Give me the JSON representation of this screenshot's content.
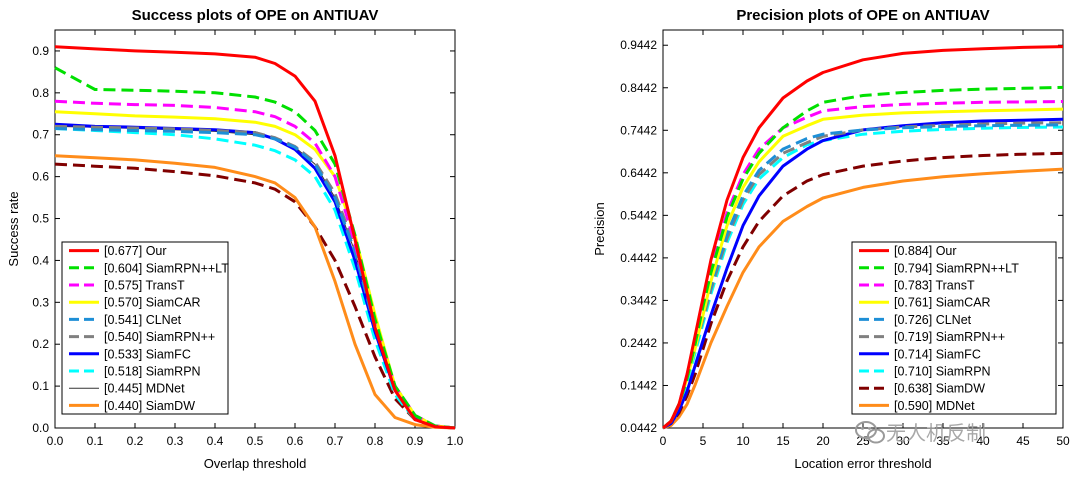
{
  "watermark": {
    "text": "无人机反制",
    "icon": "wechat-icon"
  },
  "chart_data": [
    {
      "type": "line",
      "title": "Success plots of OPE on ANTIUAV",
      "xlabel": "Overlap threshold",
      "ylabel": "Success rate",
      "xlim": [
        0,
        1
      ],
      "ylim": [
        0,
        0.95
      ],
      "x_ticks": [
        "0.0",
        "0.1",
        "0.2",
        "0.3",
        "0.4",
        "0.5",
        "0.6",
        "0.7",
        "0.8",
        "0.9",
        "1.0"
      ],
      "y_ticks": [
        "0.0",
        "0.1",
        "0.2",
        "0.3",
        "0.4",
        "0.5",
        "0.6",
        "0.7",
        "0.8",
        "0.9"
      ],
      "legend_position": "lower-left",
      "x": [
        0,
        0.1,
        0.2,
        0.3,
        0.4,
        0.5,
        0.55,
        0.6,
        0.65,
        0.7,
        0.75,
        0.8,
        0.85,
        0.9,
        0.95,
        1.0
      ],
      "series": [
        {
          "name": "[0.677] Our",
          "color": "#ff0000",
          "dash": "solid",
          "width": 3,
          "values": [
            0.91,
            0.905,
            0.9,
            0.897,
            0.893,
            0.885,
            0.87,
            0.84,
            0.78,
            0.65,
            0.45,
            0.24,
            0.09,
            0.02,
            0.003,
            0
          ]
        },
        {
          "name": "[0.604] SiamRPN++LT",
          "color": "#00e000",
          "dash": "dashed",
          "width": 3,
          "values": [
            0.86,
            0.808,
            0.806,
            0.804,
            0.8,
            0.79,
            0.778,
            0.755,
            0.71,
            0.63,
            0.46,
            0.26,
            0.1,
            0.03,
            0.005,
            0
          ]
        },
        {
          "name": "[0.575] TransT",
          "color": "#ff00ff",
          "dash": "dashed",
          "width": 3,
          "values": [
            0.78,
            0.775,
            0.772,
            0.77,
            0.765,
            0.755,
            0.743,
            0.72,
            0.68,
            0.6,
            0.44,
            0.25,
            0.1,
            0.03,
            0.005,
            0
          ]
        },
        {
          "name": "[0.570] SiamCAR",
          "color": "#ffff00",
          "dash": "solid",
          "width": 3,
          "values": [
            0.755,
            0.75,
            0.745,
            0.742,
            0.738,
            0.73,
            0.72,
            0.7,
            0.665,
            0.6,
            0.46,
            0.27,
            0.1,
            0.03,
            0.005,
            0
          ]
        },
        {
          "name": "[0.541] CLNet",
          "color": "#1e8fd6",
          "dash": "dashed",
          "width": 3,
          "values": [
            0.715,
            0.712,
            0.71,
            0.708,
            0.705,
            0.7,
            0.69,
            0.67,
            0.63,
            0.55,
            0.42,
            0.24,
            0.1,
            0.03,
            0.005,
            0
          ]
        },
        {
          "name": "[0.540] SiamRPN++",
          "color": "#808080",
          "dash": "dashed",
          "width": 3,
          "values": [
            0.72,
            0.718,
            0.716,
            0.714,
            0.71,
            0.705,
            0.693,
            0.672,
            0.635,
            0.56,
            0.43,
            0.245,
            0.1,
            0.03,
            0.005,
            0
          ]
        },
        {
          "name": "[0.533] SiamFC",
          "color": "#0000ff",
          "dash": "solid",
          "width": 3,
          "values": [
            0.725,
            0.72,
            0.718,
            0.715,
            0.712,
            0.705,
            0.69,
            0.665,
            0.62,
            0.54,
            0.4,
            0.23,
            0.09,
            0.025,
            0.004,
            0
          ]
        },
        {
          "name": "[0.518] SiamRPN",
          "color": "#00ffff",
          "dash": "dashed",
          "width": 3,
          "values": [
            0.715,
            0.71,
            0.705,
            0.7,
            0.69,
            0.675,
            0.662,
            0.64,
            0.6,
            0.52,
            0.38,
            0.21,
            0.08,
            0.02,
            0.004,
            0
          ]
        },
        {
          "name": "[0.445] MDNet",
          "color": "#333333",
          "dash": "solid",
          "width": 1,
          "values": [
            0.72,
            0.718,
            0.715,
            0.712,
            0.708,
            0.7,
            0.69,
            0.67,
            0.63,
            0.55,
            0.42,
            0.24,
            0.1,
            0.03,
            0.005,
            0
          ]
        },
        {
          "name": "[0.440] SiamDW",
          "color": "#ff8c1a",
          "dash": "solid",
          "width": 3,
          "values": [
            0.65,
            0.645,
            0.64,
            0.632,
            0.622,
            0.6,
            0.585,
            0.55,
            0.48,
            0.35,
            0.2,
            0.08,
            0.025,
            0.008,
            0.002,
            0
          ]
        },
        {
          "name": "",
          "color": "#800000",
          "dash": "dashed",
          "width": 3,
          "values": [
            0.63,
            0.625,
            0.62,
            0.612,
            0.602,
            0.585,
            0.57,
            0.54,
            0.48,
            0.4,
            0.29,
            0.17,
            0.07,
            0.02,
            0.003,
            0
          ]
        }
      ]
    },
    {
      "type": "line",
      "title": "Precision plots of OPE on ANTIUAV",
      "xlabel": "Location error threshold",
      "ylabel": "Precision",
      "xlim": [
        0,
        50
      ],
      "ylim": [
        0.0442,
        0.98
      ],
      "x_ticks": [
        "0",
        "5",
        "10",
        "15",
        "20",
        "25",
        "30",
        "35",
        "40",
        "45",
        "50"
      ],
      "y_ticks": [
        "0.0442",
        "0.1442",
        "0.2442",
        "0.3442",
        "0.4442",
        "0.5442",
        "0.6442",
        "0.7442",
        "0.8442",
        "0.9442"
      ],
      "legend_position": "lower-right",
      "x": [
        0,
        1,
        2,
        3,
        4,
        5,
        6,
        8,
        10,
        12,
        15,
        18,
        20,
        25,
        30,
        35,
        40,
        45,
        50
      ],
      "series": [
        {
          "name": "[0.884] Our",
          "color": "#ff0000",
          "dash": "solid",
          "width": 3,
          "values": [
            0.0442,
            0.06,
            0.1,
            0.17,
            0.26,
            0.35,
            0.44,
            0.58,
            0.68,
            0.75,
            0.82,
            0.86,
            0.88,
            0.91,
            0.925,
            0.932,
            0.936,
            0.939,
            0.941
          ]
        },
        {
          "name": "[0.794] SiamRPN++LT",
          "color": "#00e000",
          "dash": "dashed",
          "width": 3,
          "values": [
            0.0442,
            0.06,
            0.1,
            0.16,
            0.24,
            0.33,
            0.41,
            0.54,
            0.63,
            0.69,
            0.75,
            0.79,
            0.81,
            0.826,
            0.833,
            0.838,
            0.841,
            0.843,
            0.845
          ]
        },
        {
          "name": "[0.783] TransT",
          "color": "#ff00ff",
          "dash": "dashed",
          "width": 3,
          "values": [
            0.0442,
            0.06,
            0.1,
            0.17,
            0.25,
            0.34,
            0.42,
            0.55,
            0.64,
            0.7,
            0.75,
            0.775,
            0.79,
            0.8,
            0.805,
            0.808,
            0.81,
            0.811,
            0.812
          ]
        },
        {
          "name": "[0.761] SiamCAR",
          "color": "#ffff00",
          "dash": "solid",
          "width": 3,
          "values": [
            0.0442,
            0.06,
            0.1,
            0.16,
            0.23,
            0.31,
            0.39,
            0.52,
            0.61,
            0.67,
            0.73,
            0.755,
            0.77,
            0.78,
            0.785,
            0.788,
            0.79,
            0.792,
            0.794
          ]
        },
        {
          "name": "[0.726] CLNet",
          "color": "#1e8fd6",
          "dash": "dashed",
          "width": 3,
          "values": [
            0.0442,
            0.06,
            0.1,
            0.16,
            0.23,
            0.31,
            0.38,
            0.5,
            0.59,
            0.65,
            0.7,
            0.725,
            0.735,
            0.745,
            0.75,
            0.753,
            0.755,
            0.756,
            0.757
          ]
        },
        {
          "name": "[0.719] SiamRPN++",
          "color": "#808080",
          "dash": "dashed",
          "width": 3,
          "values": [
            0.0442,
            0.06,
            0.1,
            0.16,
            0.23,
            0.3,
            0.37,
            0.49,
            0.58,
            0.64,
            0.69,
            0.715,
            0.73,
            0.745,
            0.752,
            0.756,
            0.759,
            0.761,
            0.762
          ]
        },
        {
          "name": "[0.714] SiamFC",
          "color": "#0000ff",
          "dash": "solid",
          "width": 3,
          "values": [
            0.0442,
            0.055,
            0.085,
            0.13,
            0.19,
            0.25,
            0.31,
            0.42,
            0.52,
            0.59,
            0.66,
            0.7,
            0.72,
            0.745,
            0.755,
            0.762,
            0.766,
            0.768,
            0.77
          ]
        },
        {
          "name": "[0.710] SiamRPN",
          "color": "#00ffff",
          "dash": "dashed",
          "width": 3,
          "values": [
            0.0442,
            0.06,
            0.1,
            0.15,
            0.22,
            0.29,
            0.36,
            0.48,
            0.57,
            0.63,
            0.68,
            0.71,
            0.72,
            0.735,
            0.742,
            0.746,
            0.749,
            0.751,
            0.752
          ]
        },
        {
          "name": "[0.638] SiamDW",
          "color": "#800000",
          "dash": "dashed",
          "width": 3,
          "values": [
            0.0442,
            0.055,
            0.08,
            0.12,
            0.17,
            0.23,
            0.29,
            0.39,
            0.47,
            0.53,
            0.59,
            0.625,
            0.64,
            0.66,
            0.672,
            0.68,
            0.685,
            0.688,
            0.69
          ]
        },
        {
          "name": "[0.590] MDNet",
          "color": "#ff8c1a",
          "dash": "solid",
          "width": 3,
          "values": [
            0.0442,
            0.05,
            0.07,
            0.1,
            0.145,
            0.195,
            0.245,
            0.33,
            0.41,
            0.47,
            0.53,
            0.565,
            0.585,
            0.61,
            0.625,
            0.635,
            0.642,
            0.648,
            0.653
          ]
        }
      ]
    }
  ]
}
